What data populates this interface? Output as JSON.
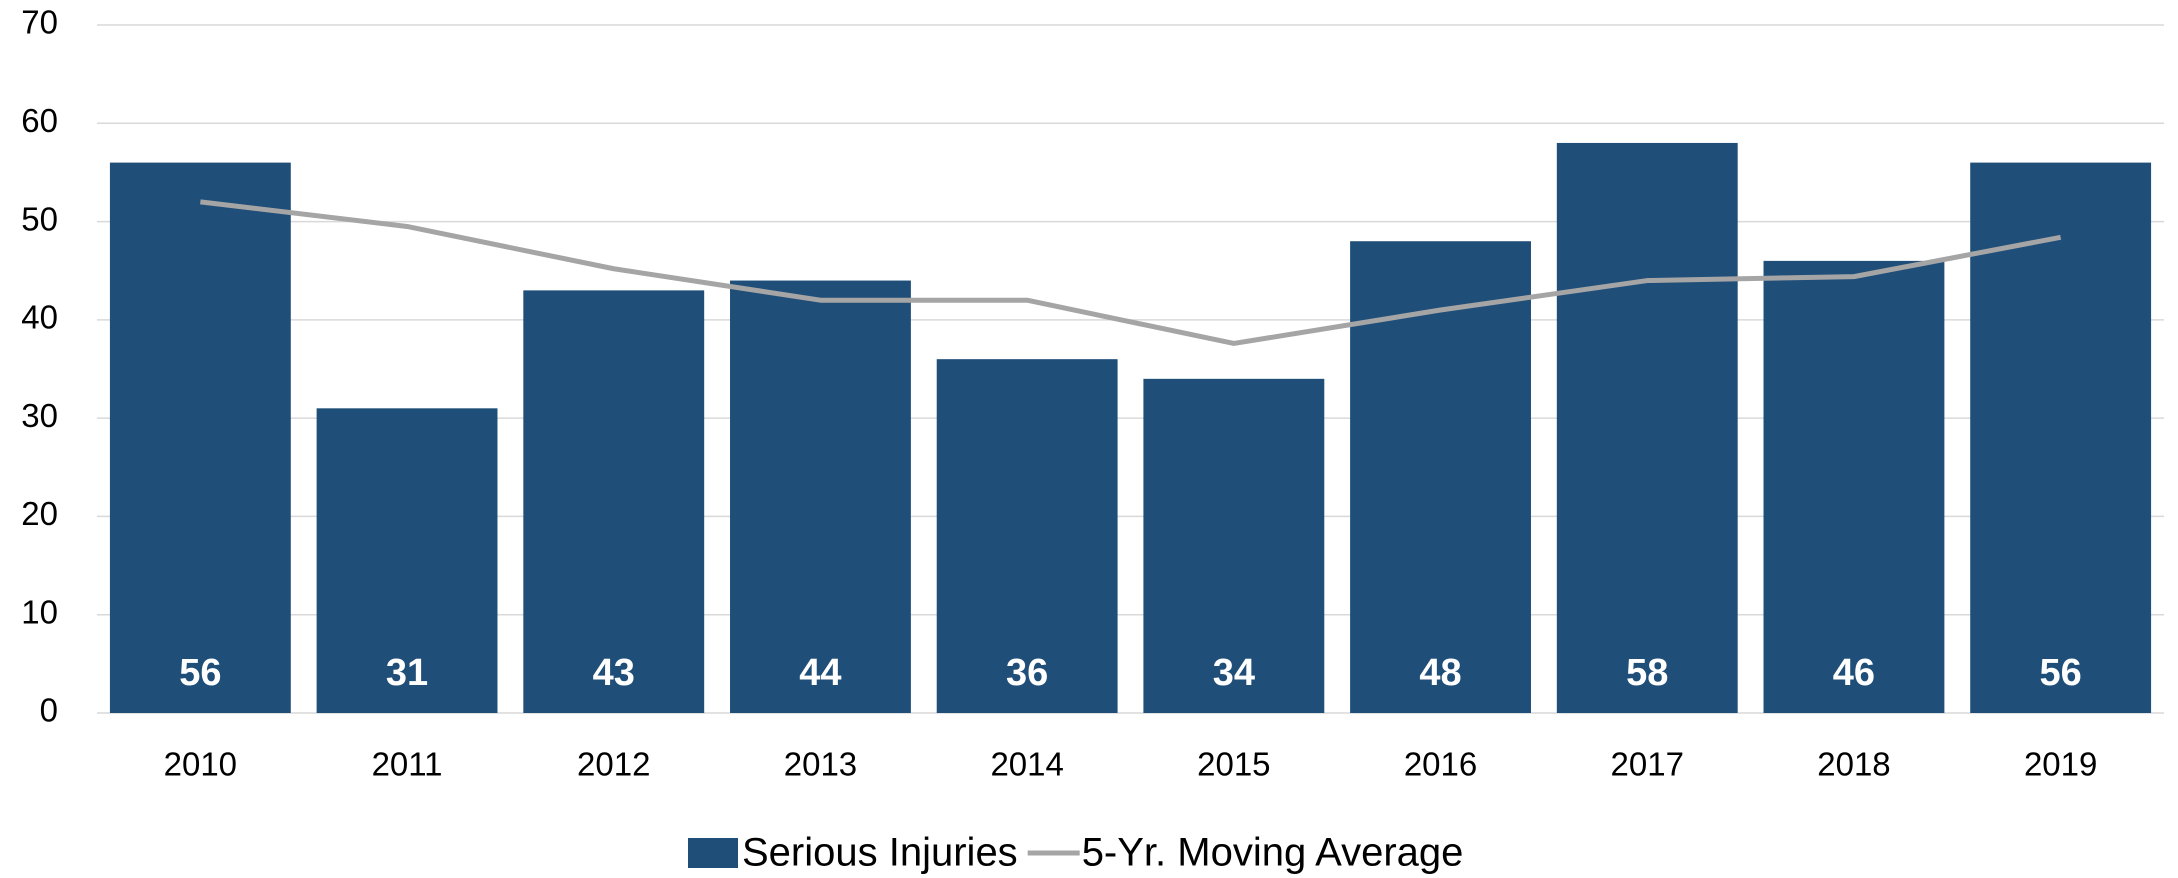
{
  "chart_data": {
    "type": "bar_line",
    "categories": [
      "2010",
      "2011",
      "2012",
      "2013",
      "2014",
      "2015",
      "2016",
      "2017",
      "2018",
      "2019"
    ],
    "series": [
      {
        "name": "Serious Injuries",
        "type": "bar",
        "color": "#1f4e79",
        "values": [
          56,
          31,
          43,
          44,
          36,
          34,
          48,
          58,
          46,
          56
        ]
      },
      {
        "name": "5-Yr. Moving Average",
        "type": "line",
        "color": "#a5a5a5",
        "values": [
          52,
          49.5,
          45.2,
          42,
          42,
          37.6,
          41,
          44,
          44.4,
          48.4
        ]
      }
    ],
    "ylim": [
      0,
      70
    ],
    "yticks": [
      0,
      10,
      20,
      30,
      40,
      50,
      60,
      70
    ],
    "grid": true,
    "legend": "bottom"
  }
}
